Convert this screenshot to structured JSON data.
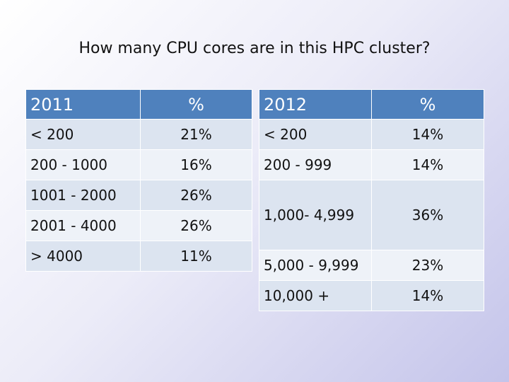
{
  "title": "How many CPU cores are in this HPC cluster?",
  "table_2011": {
    "header": {
      "year": "2011",
      "percent": "%"
    },
    "rows": [
      {
        "range": "< 200",
        "percent": "21%"
      },
      {
        "range": "200 - 1000",
        "percent": "16%"
      },
      {
        "range": "1001 - 2000",
        "percent": "26%"
      },
      {
        "range": "2001 - 4000",
        "percent": "26%"
      },
      {
        "range": "> 4000",
        "percent": "11%"
      }
    ]
  },
  "table_2012": {
    "header": {
      "year": "2012",
      "percent": "%"
    },
    "rows": [
      {
        "range": "< 200",
        "percent": "14%"
      },
      {
        "range": "200 - 999",
        "percent": "14%"
      },
      {
        "range": "1,000- 4,999",
        "percent": "36%"
      },
      {
        "range": "5,000 - 9,999",
        "percent": "23%"
      },
      {
        "range": "10,000 +",
        "percent": "14%"
      }
    ]
  }
}
